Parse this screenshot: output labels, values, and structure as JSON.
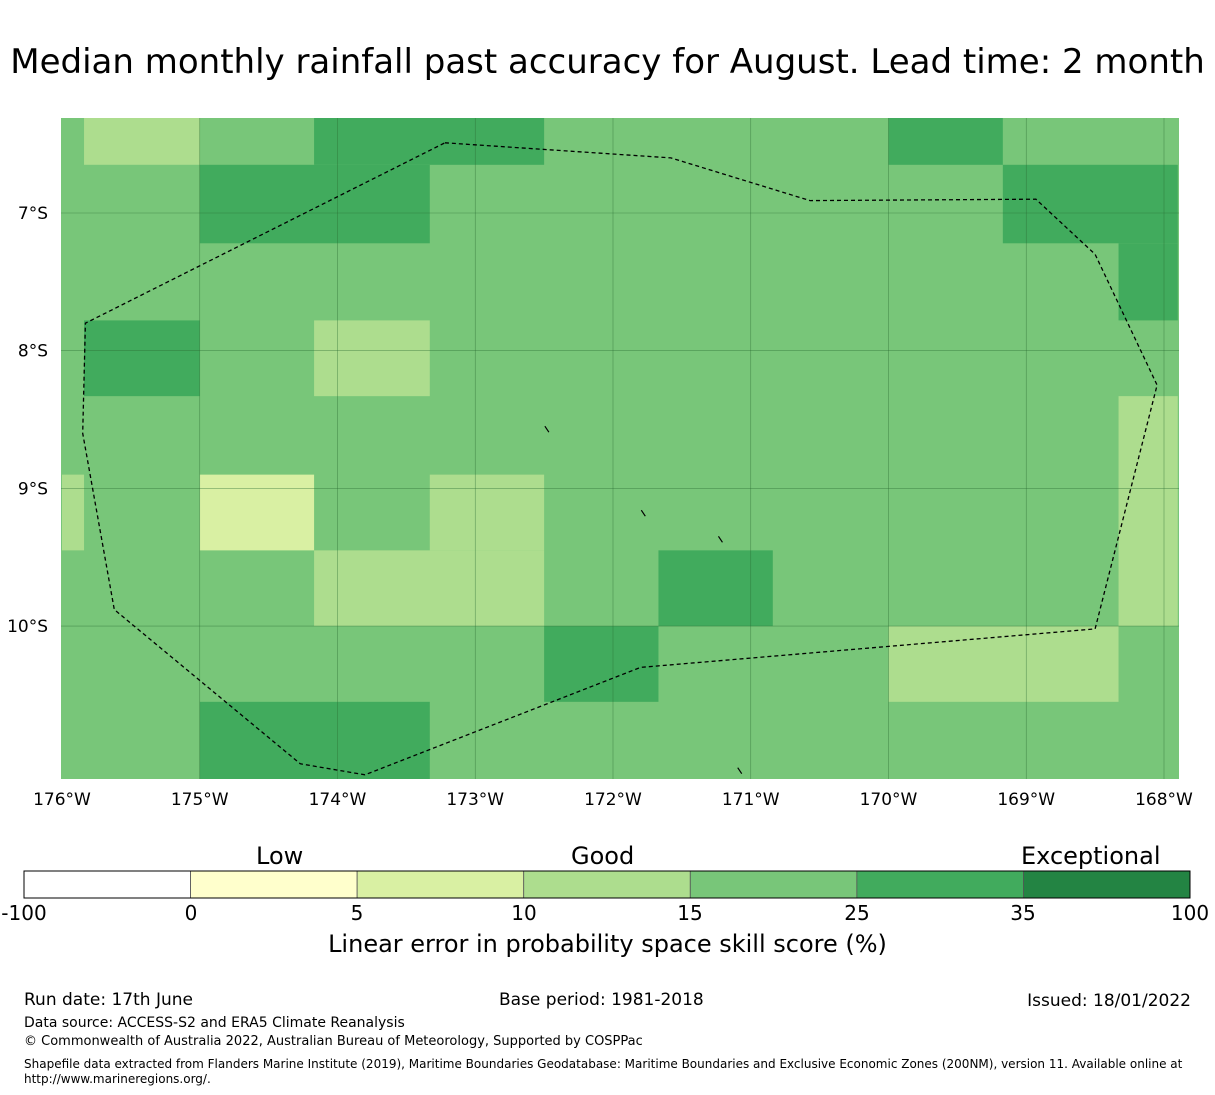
{
  "title": "Median monthly rainfall past accuracy for August. Lead time: 2 month",
  "map": {
    "lon_labels": [
      "176°W",
      "175°W",
      "174°W",
      "173°W",
      "172°W",
      "171°W",
      "170°W",
      "169°W",
      "168°W"
    ],
    "lat_labels": [
      "7°S",
      "8°S",
      "9°S",
      "10°S"
    ],
    "lon_range": [
      -176,
      -168
    ],
    "lat_range": [
      -11.15,
      -6.3
    ],
    "colors": {
      "0-5": "#ffffcc",
      "5-10": "#d9f0a3",
      "10-15": "#addd8e",
      "15-25": "#78c679",
      "25-35": "#41ab5d",
      "35-100": "#238443"
    },
    "patches": [
      {
        "lon": [
          -175.84,
          -175.0
        ],
        "lat": [
          -6.65,
          -6.3
        ],
        "cls": "10-15"
      },
      {
        "lon": [
          -174.17,
          -172.5
        ],
        "lat": [
          -6.65,
          -6.3
        ],
        "cls": "25-35"
      },
      {
        "lon": [
          -170.0,
          -169.17
        ],
        "lat": [
          -6.65,
          -6.3
        ],
        "cls": "25-35"
      },
      {
        "lon": [
          -175.0,
          -173.33
        ],
        "lat": [
          -7.22,
          -6.65
        ],
        "cls": "25-35"
      },
      {
        "lon": [
          -169.17,
          -167.9
        ],
        "lat": [
          -7.22,
          -6.65
        ],
        "cls": "25-35"
      },
      {
        "lon": [
          -168.33,
          -167.9
        ],
        "lat": [
          -7.78,
          -7.22
        ],
        "cls": "25-35"
      },
      {
        "lon": [
          -174.17,
          -173.33
        ],
        "lat": [
          -8.33,
          -7.78
        ],
        "cls": "10-15"
      },
      {
        "lon": [
          -175.84,
          -175.0
        ],
        "lat": [
          -8.33,
          -7.78
        ],
        "cls": "25-35"
      },
      {
        "lon": [
          -168.33,
          -167.9
        ],
        "lat": [
          -10.0,
          -8.33
        ],
        "cls": "10-15"
      },
      {
        "lon": [
          -176.0,
          -175.84
        ],
        "lat": [
          -9.45,
          -8.9
        ],
        "cls": "10-15"
      },
      {
        "lon": [
          -175.0,
          -174.17
        ],
        "lat": [
          -9.45,
          -8.9
        ],
        "cls": "5-10"
      },
      {
        "lon": [
          -173.33,
          -172.5
        ],
        "lat": [
          -9.45,
          -8.9
        ],
        "cls": "10-15"
      },
      {
        "lon": [
          -174.17,
          -172.5
        ],
        "lat": [
          -10.0,
          -9.45
        ],
        "cls": "10-15"
      },
      {
        "lon": [
          -171.67,
          -170.84
        ],
        "lat": [
          -10.0,
          -9.45
        ],
        "cls": "25-35"
      },
      {
        "lon": [
          -172.5,
          -171.67
        ],
        "lat": [
          -10.55,
          -10.0
        ],
        "cls": "25-35"
      },
      {
        "lon": [
          -170.0,
          -168.33
        ],
        "lat": [
          -10.55,
          -10.0
        ],
        "cls": "10-15"
      },
      {
        "lon": [
          -175.0,
          -173.33
        ],
        "lat": [
          -11.15,
          -10.55
        ],
        "cls": "25-35"
      }
    ],
    "eez_boundary": [
      [
        -173.22,
        -6.49
      ],
      [
        -171.58,
        -6.6
      ],
      [
        -170.57,
        -6.91
      ],
      [
        -168.93,
        -6.9
      ],
      [
        -168.5,
        -7.3
      ],
      [
        -168.05,
        -8.25
      ],
      [
        -168.5,
        -10.02
      ],
      [
        -171.8,
        -10.3
      ],
      [
        -173.8,
        -11.08
      ],
      [
        -174.27,
        -11.0
      ],
      [
        -175.62,
        -9.88
      ],
      [
        -175.85,
        -8.6
      ],
      [
        -175.83,
        -7.8
      ]
    ],
    "islands": [
      {
        "lon": -172.48,
        "lat": -8.57
      },
      {
        "lon": -171.78,
        "lat": -9.18
      },
      {
        "lon": -171.22,
        "lat": -9.37
      },
      {
        "lon": -171.08,
        "lat": -11.05
      }
    ]
  },
  "colorbar": {
    "categories": [
      "Low",
      "Good",
      "Exceptional"
    ],
    "boundaries": [
      "-100",
      "0",
      "5",
      "10",
      "15",
      "25",
      "35",
      "100"
    ],
    "colors": [
      "#ffffff",
      "#ffffcc",
      "#d9f0a3",
      "#addd8e",
      "#78c679",
      "#41ab5d",
      "#238443"
    ],
    "label": "Linear error in probability space skill score (%)"
  },
  "footer": {
    "run_date": "Run date: 17th June",
    "base_period": "Base period: 1981-2018",
    "issued": "Issued: 18/01/2022",
    "data_source": "Data source: ACCESS-S2 and ERA5 Climate Reanalysis",
    "copyright": "© Commonwealth of Australia 2022, Australian Bureau of Meteorology, Supported by COSPPac",
    "shapefile_note": "Shapefile data extracted from Flanders Marine Institute (2019), Maritime Boundaries Geodatabase: Maritime Boundaries and Exclusive Economic Zones (200NM), version 11. Available online at http://www.marineregions.org/."
  }
}
